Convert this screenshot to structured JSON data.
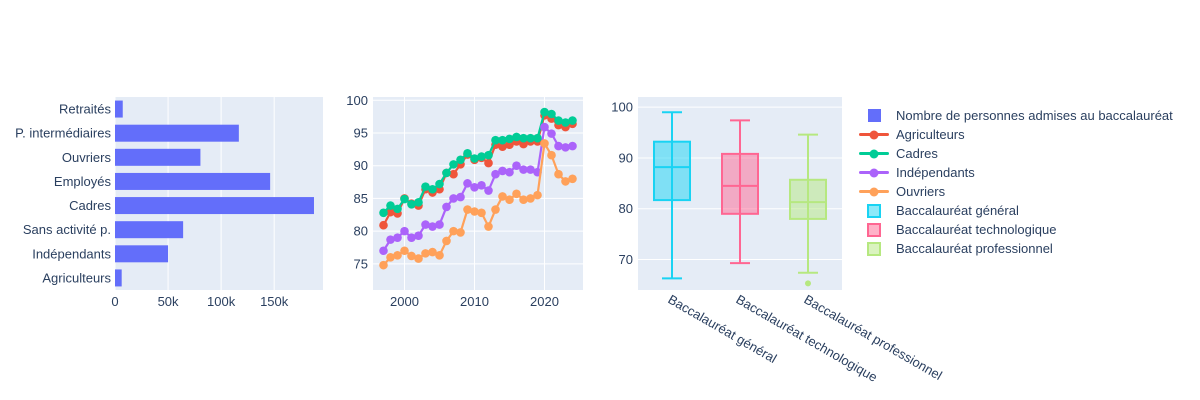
{
  "figure": {
    "background": "#ffffff",
    "plot_background": "#E5ECF6",
    "grid_color": "#ffffff",
    "text_color": "#2a3f5f"
  },
  "legend": {
    "items": [
      {
        "label": "Nombre de personnes admises au baccalauréat",
        "swatch": "square",
        "color": "#636EFA"
      },
      {
        "label": "Agriculteurs",
        "swatch": "line",
        "color": "#EF553B"
      },
      {
        "label": "Cadres",
        "swatch": "line",
        "color": "#00CC96"
      },
      {
        "label": "Indépendants",
        "swatch": "line",
        "color": "#AB63FA"
      },
      {
        "label": "Ouvriers",
        "swatch": "line",
        "color": "#FFA15A"
      },
      {
        "label": "Baccalauréat général",
        "swatch": "box",
        "color": "#19D3F3",
        "fill": "rgba(25,211,243,0.5)"
      },
      {
        "label": "Baccalauréat technologique",
        "swatch": "box",
        "color": "#FF6692",
        "fill": "rgba(255,102,146,0.5)"
      },
      {
        "label": "Baccalauréat professionnel",
        "swatch": "box",
        "color": "#B6E880",
        "fill": "rgba(182,232,128,0.5)"
      }
    ]
  },
  "chart_data": [
    {
      "type": "bar",
      "orientation": "horizontal",
      "series_name": "Nombre de personnes admises au baccalauréat",
      "color": "#636EFA",
      "categories": [
        "Retraités",
        "P. intermédiaires",
        "Ouvriers",
        "Employés",
        "Cadres",
        "Sans activité p.",
        "Indépendants",
        "Agriculteurs"
      ],
      "values": [
        7300,
        116700,
        80500,
        146200,
        187500,
        64200,
        50000,
        6300
      ],
      "xlim": [
        0,
        196000
      ],
      "x_ticks": [
        {
          "value": 0,
          "label": "0"
        },
        {
          "value": 50000,
          "label": "50k"
        },
        {
          "value": 100000,
          "label": "100k"
        },
        {
          "value": 150000,
          "label": "150k"
        }
      ]
    },
    {
      "type": "line",
      "x": [
        1997,
        1998,
        1999,
        2000,
        2001,
        2002,
        2003,
        2004,
        2005,
        2006,
        2007,
        2008,
        2009,
        2010,
        2011,
        2012,
        2013,
        2014,
        2015,
        2016,
        2017,
        2018,
        2019,
        2020,
        2021,
        2022,
        2023,
        2024
      ],
      "xlim": [
        1995.5,
        2025.5
      ],
      "ylim": [
        71,
        100.5
      ],
      "x_ticks": [
        {
          "value": 2000,
          "label": "2000"
        },
        {
          "value": 2010,
          "label": "2010"
        },
        {
          "value": 2020,
          "label": "2020"
        }
      ],
      "y_ticks": [
        {
          "value": 75,
          "label": "75"
        },
        {
          "value": 80,
          "label": "80"
        },
        {
          "value": 85,
          "label": "85"
        },
        {
          "value": 90,
          "label": "90"
        },
        {
          "value": 95,
          "label": "95"
        },
        {
          "value": 100,
          "label": "100"
        }
      ],
      "series": [
        {
          "name": "Agriculteurs",
          "color": "#EF553B",
          "values": [
            80.9,
            82.9,
            82.7,
            85.0,
            84.2,
            83.9,
            86.4,
            85.9,
            86.4,
            88.9,
            88.7,
            90.2,
            91.7,
            90.9,
            91.2,
            90.4,
            93.2,
            92.9,
            93.2,
            93.7,
            93.3,
            93.7,
            93.7,
            97.7,
            97.2,
            96.2,
            95.9,
            96.4
          ]
        },
        {
          "name": "Cadres",
          "color": "#00CC96",
          "values": [
            82.8,
            83.9,
            83.4,
            84.9,
            84.1,
            84.4,
            86.8,
            86.4,
            87.2,
            88.9,
            90.2,
            90.9,
            91.9,
            91.1,
            91.4,
            91.6,
            93.9,
            93.9,
            94.1,
            94.4,
            94.2,
            94.2,
            94.2,
            98.2,
            97.9,
            96.9,
            96.6,
            96.9
          ]
        },
        {
          "name": "Indépendants",
          "color": "#AB63FA",
          "values": [
            77.0,
            78.7,
            79.0,
            80.0,
            79.0,
            79.3,
            81.0,
            80.7,
            81.0,
            83.7,
            85.0,
            85.2,
            87.3,
            86.7,
            87.0,
            86.2,
            88.7,
            89.2,
            89.0,
            90.0,
            89.4,
            89.4,
            89.0,
            95.9,
            94.9,
            93.0,
            92.8,
            93.0
          ]
        },
        {
          "name": "Ouvriers",
          "color": "#FFA15A",
          "values": [
            74.8,
            76.0,
            76.3,
            77.0,
            76.2,
            75.8,
            76.6,
            76.8,
            76.3,
            78.5,
            80.0,
            79.8,
            83.3,
            83.0,
            82.8,
            80.7,
            83.3,
            85.3,
            84.8,
            85.7,
            84.8,
            85.0,
            85.5,
            93.4,
            91.6,
            88.7,
            87.6,
            88.0
          ]
        }
      ]
    },
    {
      "type": "box",
      "ylim": [
        64,
        102
      ],
      "y_ticks": [
        {
          "value": 70,
          "label": "70"
        },
        {
          "value": 80,
          "label": "80"
        },
        {
          "value": 90,
          "label": "90"
        },
        {
          "value": 100,
          "label": "100"
        }
      ],
      "boxes": [
        {
          "name": "Baccalauréat général",
          "color": "#19D3F3",
          "fill": "rgba(25,211,243,0.5)",
          "min": 66.3,
          "q1": 81.7,
          "median": 88.2,
          "q3": 93.2,
          "max": 99.0,
          "outliers": []
        },
        {
          "name": "Baccalauréat technologique",
          "color": "#FF6692",
          "fill": "rgba(255,102,146,0.5)",
          "min": 69.3,
          "q1": 79.0,
          "median": 84.5,
          "q3": 90.8,
          "max": 97.4,
          "outliers": []
        },
        {
          "name": "Baccalauréat professionnel",
          "color": "#B6E880",
          "fill": "rgba(182,232,128,0.5)",
          "min": 67.4,
          "q1": 78.0,
          "median": 81.3,
          "q3": 85.7,
          "max": 94.6,
          "outliers": [
            65.3
          ]
        }
      ]
    }
  ]
}
